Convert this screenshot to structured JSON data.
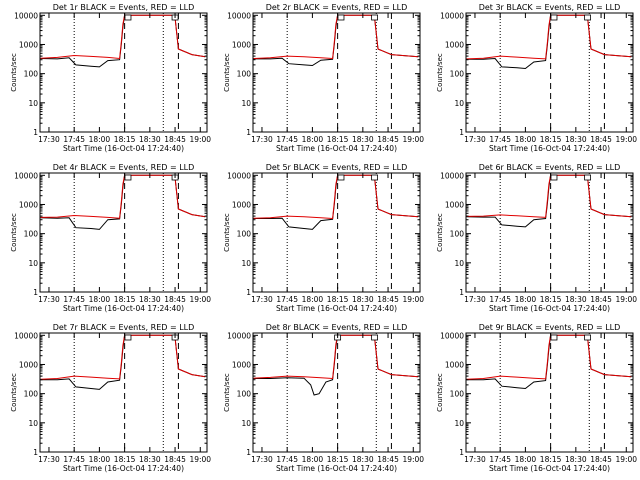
{
  "colors": {
    "events": "#000000",
    "lld": "#e00000",
    "background": "#ffffff"
  },
  "shared": {
    "ylabel": "Counts/sec",
    "xlabel": "Start Time (16-Oct-04 17:24:40)",
    "x_ticks": [
      "17:30",
      "17:45",
      "18:00",
      "18:15",
      "18:30",
      "18:45",
      "19:00"
    ],
    "y_ticks": [
      "1",
      "10",
      "100",
      "1000",
      "10000"
    ],
    "xlim": [
      "17:24:40",
      "19:04:00"
    ],
    "ylim": [
      1,
      12000
    ],
    "yscale": "log",
    "dotted_lines_x": [
      "17:45",
      "18:38"
    ],
    "dashed_lines_x": [
      "18:15",
      "18:47"
    ]
  },
  "chart_data": [
    {
      "type": "line",
      "title": "Det 1r BLACK = Events, RED = LLD",
      "series": [
        {
          "x": [
            "17:25",
            "17:35",
            "17:42",
            "17:46",
            "17:55",
            "18:00",
            "18:05",
            "18:12",
            "18:13",
            "18:14",
            "18:15",
            "18:17",
            "18:43",
            "18:45",
            "18:47",
            "18:55",
            "19:03"
          ],
          "values": [
            330,
            320,
            350,
            200,
            180,
            170,
            280,
            300,
            1000,
            4000,
            10000,
            10000,
            10000,
            8000,
            700,
            450,
            380
          ]
        },
        {
          "x": [
            "17:25",
            "17:35",
            "17:45",
            "17:55",
            "18:05",
            "18:12",
            "18:13",
            "18:14",
            "18:15",
            "18:17",
            "18:43",
            "18:45",
            "18:47",
            "18:55",
            "19:03"
          ],
          "values": [
            340,
            360,
            420,
            390,
            360,
            330,
            1200,
            5000,
            10000,
            10000,
            10000,
            8000,
            700,
            450,
            380
          ]
        }
      ]
    },
    {
      "type": "line",
      "title": "Det 2r BLACK = Events, RED = LLD",
      "series": [
        {
          "x": [
            "17:25",
            "17:35",
            "17:42",
            "17:46",
            "17:55",
            "18:00",
            "18:05",
            "18:12",
            "18:13",
            "18:14",
            "18:15",
            "18:17",
            "18:35",
            "18:37",
            "18:39",
            "18:47",
            "19:03"
          ],
          "values": [
            320,
            320,
            340,
            220,
            200,
            190,
            290,
            310,
            1000,
            4000,
            10000,
            10000,
            10000,
            8000,
            700,
            450,
            380
          ]
        },
        {
          "x": [
            "17:25",
            "17:35",
            "17:45",
            "17:55",
            "18:05",
            "18:12",
            "18:13",
            "18:14",
            "18:15",
            "18:17",
            "18:35",
            "18:37",
            "18:39",
            "18:47",
            "19:03"
          ],
          "values": [
            330,
            350,
            400,
            380,
            350,
            330,
            1200,
            5000,
            10000,
            10000,
            10000,
            8000,
            700,
            450,
            380
          ]
        }
      ]
    },
    {
      "type": "line",
      "title": "Det 3r BLACK = Events, RED = LLD",
      "series": [
        {
          "x": [
            "17:25",
            "17:35",
            "17:42",
            "17:46",
            "17:55",
            "18:00",
            "18:05",
            "18:12",
            "18:13",
            "18:14",
            "18:15",
            "18:17",
            "18:35",
            "18:37",
            "18:39",
            "18:47",
            "19:03"
          ],
          "values": [
            310,
            310,
            330,
            170,
            160,
            150,
            250,
            280,
            900,
            3500,
            10000,
            10000,
            10000,
            8000,
            700,
            450,
            380
          ]
        },
        {
          "x": [
            "17:25",
            "17:35",
            "17:45",
            "17:55",
            "18:05",
            "18:12",
            "18:13",
            "18:14",
            "18:15",
            "18:17",
            "18:35",
            "18:37",
            "18:39",
            "18:47",
            "19:03"
          ],
          "values": [
            320,
            340,
            400,
            370,
            340,
            320,
            1100,
            4500,
            10000,
            10000,
            10000,
            8000,
            700,
            450,
            380
          ]
        }
      ]
    },
    {
      "type": "line",
      "title": "Det 4r BLACK = Events, RED = LLD",
      "series": [
        {
          "x": [
            "17:25",
            "17:35",
            "17:42",
            "17:46",
            "17:55",
            "18:00",
            "18:05",
            "18:12",
            "18:13",
            "18:14",
            "18:15",
            "18:17",
            "18:43",
            "18:45",
            "18:47",
            "18:55",
            "19:03"
          ],
          "values": [
            350,
            340,
            350,
            160,
            150,
            140,
            300,
            320,
            1000,
            4000,
            10000,
            10000,
            10000,
            8000,
            700,
            450,
            380
          ]
        },
        {
          "x": [
            "17:25",
            "17:35",
            "17:45",
            "17:55",
            "18:05",
            "18:12",
            "18:13",
            "18:14",
            "18:15",
            "18:17",
            "18:43",
            "18:45",
            "18:47",
            "18:55",
            "19:03"
          ],
          "values": [
            360,
            370,
            420,
            390,
            360,
            340,
            1200,
            5000,
            10000,
            10000,
            10000,
            8000,
            700,
            450,
            380
          ]
        }
      ]
    },
    {
      "type": "line",
      "title": "Det 5r BLACK = Events, RED = LLD",
      "series": [
        {
          "x": [
            "17:25",
            "17:35",
            "17:42",
            "17:46",
            "17:55",
            "18:00",
            "18:05",
            "18:12",
            "18:13",
            "18:14",
            "18:15",
            "18:17",
            "18:35",
            "18:37",
            "18:39",
            "18:47",
            "19:03"
          ],
          "values": [
            330,
            330,
            340,
            170,
            150,
            140,
            280,
            310,
            1000,
            4000,
            10000,
            10000,
            10000,
            8000,
            700,
            450,
            380
          ]
        },
        {
          "x": [
            "17:25",
            "17:35",
            "17:45",
            "17:55",
            "18:05",
            "18:12",
            "18:13",
            "18:14",
            "18:15",
            "18:17",
            "18:35",
            "18:37",
            "18:39",
            "18:47",
            "19:03"
          ],
          "values": [
            340,
            350,
            400,
            380,
            350,
            330,
            1200,
            5000,
            10000,
            10000,
            10000,
            8000,
            700,
            450,
            380
          ]
        }
      ]
    },
    {
      "type": "line",
      "title": "Det 6r BLACK = Events, RED = LLD",
      "series": [
        {
          "x": [
            "17:25",
            "17:35",
            "17:42",
            "17:46",
            "17:55",
            "18:00",
            "18:05",
            "18:12",
            "18:13",
            "18:14",
            "18:15",
            "18:17",
            "18:35",
            "18:37",
            "18:39",
            "18:47",
            "19:03"
          ],
          "values": [
            380,
            370,
            370,
            200,
            180,
            170,
            300,
            330,
            1000,
            4000,
            10000,
            10000,
            10000,
            8000,
            700,
            450,
            380
          ]
        },
        {
          "x": [
            "17:25",
            "17:35",
            "17:45",
            "17:55",
            "18:05",
            "18:12",
            "18:13",
            "18:14",
            "18:15",
            "18:17",
            "18:35",
            "18:37",
            "18:39",
            "18:47",
            "19:03"
          ],
          "values": [
            390,
            400,
            440,
            410,
            380,
            360,
            1300,
            5000,
            10000,
            10000,
            10000,
            8000,
            700,
            450,
            380
          ]
        }
      ]
    },
    {
      "type": "line",
      "title": "Det 7r BLACK = Events, RED = LLD",
      "series": [
        {
          "x": [
            "17:25",
            "17:35",
            "17:42",
            "17:46",
            "17:55",
            "18:00",
            "18:05",
            "18:12",
            "18:13",
            "18:14",
            "18:15",
            "18:17",
            "18:43",
            "18:45",
            "18:47",
            "18:55",
            "19:03"
          ],
          "values": [
            300,
            300,
            320,
            170,
            150,
            140,
            250,
            290,
            900,
            3500,
            10000,
            10000,
            10000,
            8000,
            700,
            450,
            380
          ]
        },
        {
          "x": [
            "17:25",
            "17:35",
            "17:45",
            "17:55",
            "18:05",
            "18:12",
            "18:13",
            "18:14",
            "18:15",
            "18:17",
            "18:43",
            "18:45",
            "18:47",
            "18:55",
            "19:03"
          ],
          "values": [
            310,
            330,
            400,
            370,
            340,
            320,
            1100,
            4500,
            10000,
            10000,
            10000,
            8000,
            700,
            450,
            380
          ]
        }
      ]
    },
    {
      "type": "line",
      "title": "Det 8r BLACK = Events, RED = LLD",
      "series": [
        {
          "x": [
            "17:25",
            "17:35",
            "17:45",
            "17:55",
            "17:59",
            "18:01",
            "18:04",
            "18:08",
            "18:12",
            "18:13",
            "18:14",
            "18:15",
            "18:17",
            "18:35",
            "18:37",
            "18:39",
            "18:47",
            "19:03"
          ],
          "values": [
            330,
            330,
            350,
            340,
            200,
            90,
            100,
            250,
            300,
            1000,
            4000,
            10000,
            10000,
            10000,
            8000,
            700,
            450,
            380
          ]
        },
        {
          "x": [
            "17:25",
            "17:35",
            "17:45",
            "17:55",
            "18:05",
            "18:12",
            "18:13",
            "18:14",
            "18:15",
            "18:17",
            "18:35",
            "18:37",
            "18:39",
            "18:47",
            "19:03"
          ],
          "values": [
            340,
            360,
            400,
            380,
            350,
            330,
            1200,
            5000,
            10000,
            10000,
            10000,
            8000,
            700,
            450,
            380
          ]
        }
      ]
    },
    {
      "type": "line",
      "title": "Det 9r BLACK = Events, RED = LLD",
      "series": [
        {
          "x": [
            "17:25",
            "17:35",
            "17:42",
            "17:46",
            "17:55",
            "18:00",
            "18:05",
            "18:12",
            "18:13",
            "18:14",
            "18:15",
            "18:17",
            "18:35",
            "18:37",
            "18:39",
            "18:47",
            "19:03"
          ],
          "values": [
            300,
            300,
            320,
            180,
            160,
            150,
            250,
            280,
            900,
            3500,
            10000,
            10000,
            10000,
            8000,
            700,
            450,
            380
          ]
        },
        {
          "x": [
            "17:25",
            "17:35",
            "17:45",
            "17:55",
            "18:05",
            "18:12",
            "18:13",
            "18:14",
            "18:15",
            "18:17",
            "18:35",
            "18:37",
            "18:39",
            "18:47",
            "19:03"
          ],
          "values": [
            310,
            330,
            400,
            370,
            340,
            320,
            1100,
            4500,
            10000,
            10000,
            10000,
            8000,
            700,
            450,
            380
          ]
        }
      ]
    }
  ]
}
